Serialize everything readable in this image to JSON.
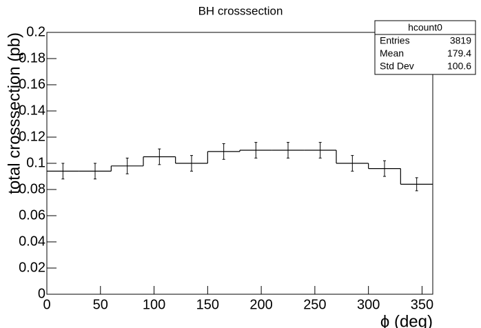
{
  "chart_data": {
    "type": "histogram",
    "title": "BH crosssection",
    "x_label": "ϕ (deg)",
    "y_label": "total crosssection (pb)",
    "bins": [
      0,
      30,
      60,
      90,
      120,
      150,
      180,
      210,
      240,
      270,
      300,
      330,
      360
    ],
    "values": [
      0.094,
      0.094,
      0.098,
      0.105,
      0.1,
      0.109,
      0.11,
      0.11,
      0.11,
      0.1,
      0.096,
      0.084
    ],
    "errors": [
      0.006,
      0.006,
      0.006,
      0.006,
      0.006,
      0.006,
      0.006,
      0.006,
      0.006,
      0.006,
      0.006,
      0.005
    ],
    "color": "#000000",
    "xlim": [
      0,
      360
    ],
    "xticks": [
      0,
      50,
      100,
      150,
      200,
      250,
      300,
      350
    ],
    "ylim": [
      0,
      0.2
    ],
    "yticks": [
      0,
      0.02,
      0.04,
      0.06,
      0.08,
      0.1,
      0.12,
      0.14,
      0.16,
      0.18,
      0.2
    ],
    "stats": {
      "title": "hcount0",
      "rows": [
        {
          "label": "Entries",
          "value": 3819
        },
        {
          "label": "Mean",
          "value": 179.4
        },
        {
          "label": "Std Dev",
          "value": 100.6
        }
      ]
    }
  }
}
